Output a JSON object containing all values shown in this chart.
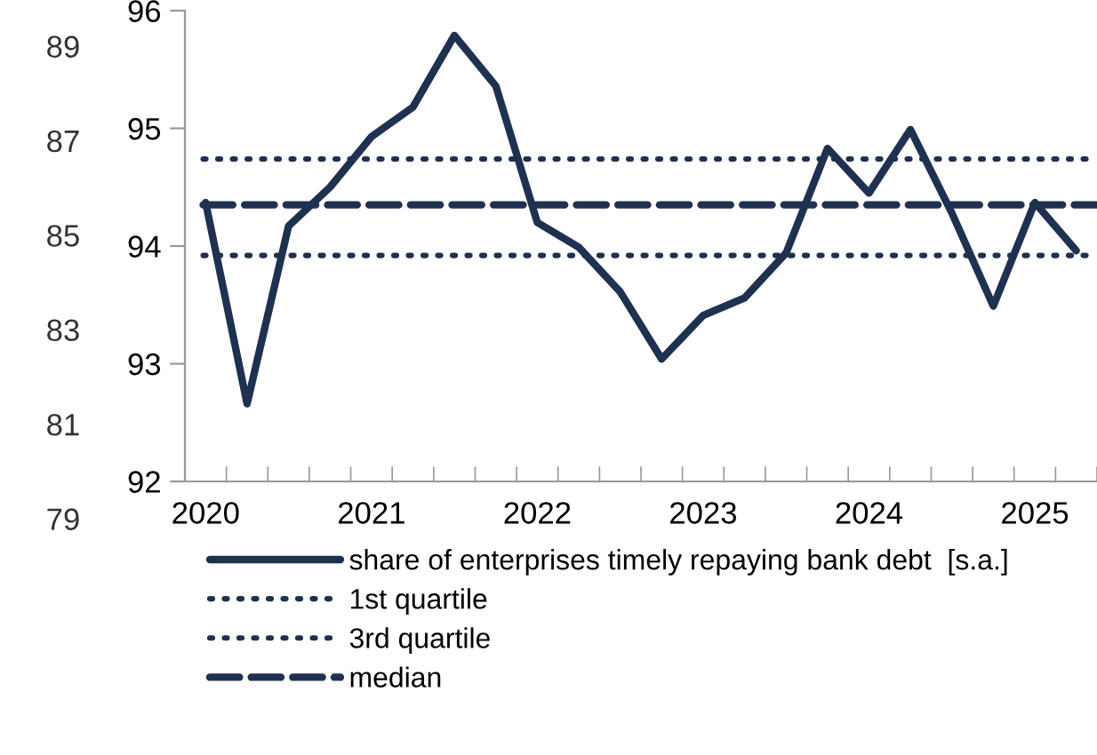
{
  "chart_data": {
    "type": "line",
    "categories": [
      "2020",
      null,
      null,
      null,
      "2021",
      null,
      null,
      null,
      "2022",
      null,
      null,
      null,
      "2023",
      null,
      null,
      null,
      "2024",
      null,
      null,
      null,
      "2025",
      null
    ],
    "series": [
      {
        "name": "share of enterprises timely repaying bank debt  [s.a.]",
        "color": "#1f3150",
        "values": [
          94.37,
          92.66,
          94.17,
          94.5,
          94.93,
          95.18,
          95.79,
          95.36,
          94.2,
          93.99,
          93.61,
          93.04,
          93.41,
          93.56,
          93.94,
          94.83,
          94.45,
          94.99,
          94.28,
          93.49,
          94.37,
          93.96
        ]
      }
    ],
    "ref_lines": [
      {
        "axis": "y",
        "value": 93.92,
        "label": "1st quartile",
        "color": "#1f3150",
        "line_style": "dotted"
      },
      {
        "axis": "y",
        "value": 94.74,
        "label": "3rd quartile",
        "color": "#1f3150",
        "line_style": "dotted"
      },
      {
        "axis": "y",
        "value": 94.35,
        "label": "median",
        "color": "#1f3150",
        "line_style": "dashed"
      }
    ],
    "ylim": [
      92,
      96
    ],
    "yticks": [
      92,
      93,
      94,
      95,
      96
    ],
    "y2lim": [
      79,
      89
    ],
    "y2ticks": [
      79,
      81,
      83,
      85,
      87,
      89
    ],
    "line_style": "solid",
    "marker": "none",
    "grid": false,
    "legend": "bottom"
  }
}
